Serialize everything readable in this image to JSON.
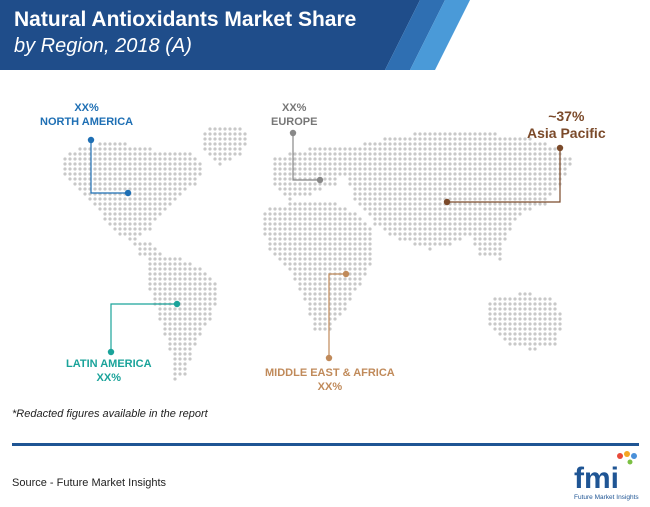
{
  "header": {
    "title": "Natural Antioxidants Market Share",
    "subtitle": "by Region, 2018 (A)"
  },
  "chart_data": {
    "type": "map",
    "title": "Natural Antioxidants Market Share",
    "subtitle": "by Region, 2018 (A)",
    "regions": [
      {
        "name": "NORTH AMERICA",
        "value": "XX%",
        "color": "#1e6fb4"
      },
      {
        "name": "EUROPE",
        "value": "XX%",
        "color": "#888888"
      },
      {
        "name": "Asia Pacific",
        "value": "~37%",
        "color": "#7b4a2a"
      },
      {
        "name": "LATIN AMERICA",
        "value": "XX%",
        "color": "#1aa39a"
      },
      {
        "name": "MIDDLE EAST & AFRICA",
        "value": "XX%",
        "color": "#c08a5a"
      }
    ]
  },
  "footnote": "*Redacted figures available in the report",
  "source": "Source - Future Market Insights",
  "logo": {
    "text": "fmi",
    "caption": "Future Market Insights"
  },
  "colors": {
    "banner_dark": "#1f4d8a",
    "banner_light": "#3d8fd1",
    "map_dots": "#c8c8c8",
    "rule": "#1f5594"
  }
}
